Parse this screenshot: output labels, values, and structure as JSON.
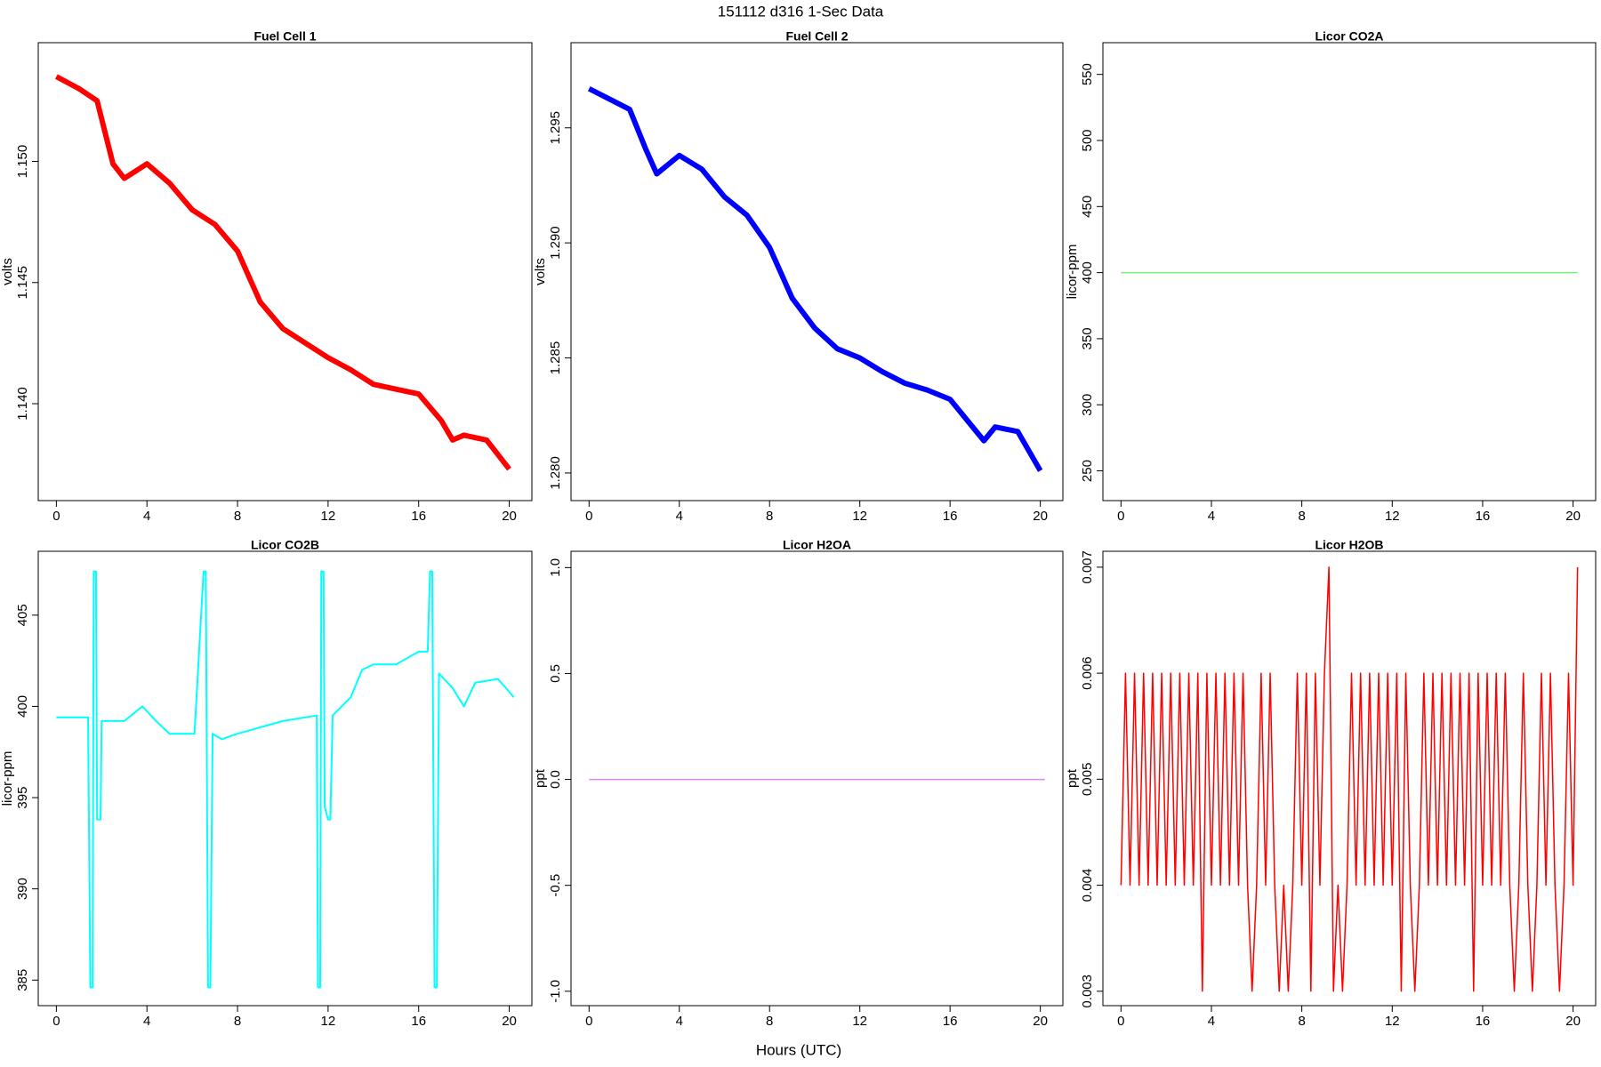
{
  "page_title": "151112   d316   1-Sec Data",
  "x_label": "Hours (UTC)",
  "chart_data": [
    {
      "type": "line",
      "title": "Fuel Cell 1",
      "y_label": "volts",
      "color": "#ff0000",
      "width": 6,
      "x": [
        0,
        1,
        1.8,
        2.5,
        3,
        4,
        5,
        6,
        7,
        8,
        9,
        10,
        11,
        12,
        13,
        14,
        15,
        16,
        17,
        17.5,
        18,
        19,
        20
      ],
      "values": [
        1.1535,
        1.153,
        1.1525,
        1.1499,
        1.1493,
        1.1499,
        1.1491,
        1.148,
        1.1474,
        1.1463,
        1.1442,
        1.1431,
        1.1425,
        1.1419,
        1.1414,
        1.1408,
        1.1406,
        1.1404,
        1.1393,
        1.1385,
        1.1387,
        1.1385,
        1.1373
      ],
      "xlim": [
        -0.8,
        21
      ],
      "xticks": [
        0,
        4,
        8,
        12,
        16,
        20
      ],
      "ylim": [
        1.136,
        1.1549
      ],
      "yticks": [
        {
          "value": 1.14,
          "label": "1.140"
        },
        1.145,
        {
          "value": 1.15,
          "label": "1.150"
        }
      ]
    },
    {
      "type": "line",
      "title": "Fuel Cell 2",
      "y_label": "volts",
      "color": "#0000ff",
      "width": 6,
      "x": [
        0,
        1,
        1.8,
        2.5,
        3,
        4,
        5,
        6,
        7,
        8,
        9,
        10,
        11,
        12,
        13,
        14,
        15,
        16,
        17,
        17.5,
        18,
        19,
        20
      ],
      "values": [
        1.2967,
        1.2962,
        1.2958,
        1.2941,
        1.293,
        1.2938,
        1.2932,
        1.292,
        1.2912,
        1.2898,
        1.2876,
        1.2863,
        1.2854,
        1.285,
        1.2844,
        1.2839,
        1.2836,
        1.2832,
        1.282,
        1.2814,
        1.282,
        1.2818,
        1.2801
      ],
      "xlim": [
        -0.8,
        21
      ],
      "xticks": [
        0,
        4,
        8,
        12,
        16,
        20
      ],
      "ylim": [
        1.2788,
        1.2987
      ],
      "yticks": [
        {
          "value": 1.28,
          "label": "1.280"
        },
        1.285,
        {
          "value": 1.29,
          "label": "1.290"
        },
        1.295
      ]
    },
    {
      "type": "line",
      "title": "Licor CO2A",
      "y_label": "licor-ppm",
      "color": "#77ee77",
      "width": 1.5,
      "x": [
        0,
        20.2
      ],
      "values": [
        400,
        400
      ],
      "xlim": [
        -0.8,
        21
      ],
      "xticks": [
        0,
        4,
        8,
        12,
        16,
        20
      ],
      "ylim": [
        227.5,
        574
      ],
      "yticks": [
        250,
        300,
        350,
        400,
        450,
        500,
        550
      ]
    },
    {
      "type": "line",
      "title": "Licor CO2B",
      "y_label": "licor-ppm",
      "color": "#00ffff",
      "width": 2,
      "x": [
        0,
        1.4,
        1.5,
        1.6,
        1.65,
        1.75,
        1.8,
        1.95,
        2,
        3,
        3.8,
        4.4,
        5,
        6.1,
        6.5,
        6.6,
        6.7,
        6.8,
        6.9,
        7.3,
        8,
        10,
        11,
        11.5,
        11.55,
        11.65,
        11.7,
        11.8,
        11.85,
        12,
        12.1,
        12.2,
        13,
        13.5,
        14,
        15,
        16,
        16.4,
        16.5,
        16.6,
        16.7,
        16.8,
        16.9,
        17.5,
        18,
        18.5,
        19.5,
        20,
        20.2
      ],
      "values": [
        399.4,
        399.4,
        384.6,
        384.6,
        407.4,
        407.4,
        393.8,
        393.8,
        399.2,
        399.2,
        400,
        399.2,
        398.5,
        398.5,
        407.4,
        407.4,
        384.6,
        384.6,
        398.5,
        398.2,
        398.5,
        399.2,
        399.4,
        399.5,
        384.6,
        384.6,
        407.4,
        407.4,
        394.5,
        393.8,
        393.8,
        399.5,
        400.5,
        402,
        402.3,
        402.3,
        403,
        403,
        407.4,
        407.4,
        384.6,
        384.6,
        401.8,
        401,
        400,
        401.3,
        401.5,
        400.8,
        400.5
      ],
      "xlim": [
        -0.8,
        21
      ],
      "xticks": [
        0,
        4,
        8,
        12,
        16,
        20
      ],
      "ylim": [
        383.6,
        408.5
      ],
      "yticks": [
        385,
        390,
        395,
        400,
        405
      ]
    },
    {
      "type": "line",
      "title": "Licor H2OA",
      "y_label": "ppt",
      "color": "#dd88ee",
      "width": 1.5,
      "x": [
        0,
        20.2
      ],
      "values": [
        0,
        0
      ],
      "xlim": [
        -0.8,
        21
      ],
      "xticks": [
        0,
        4,
        8,
        12,
        16,
        20
      ],
      "ylim": [
        -1.068,
        1.077
      ],
      "yticks": [
        {
          "value": -1,
          "label": "-1.0"
        },
        -0.5,
        {
          "value": 0,
          "label": "0.0"
        },
        0.5,
        {
          "value": 1,
          "label": "1.0"
        }
      ]
    },
    {
      "type": "line",
      "title": "Licor H2OB",
      "y_label": "ppt",
      "color": "#ff0000",
      "width": 1.5,
      "x": [
        0,
        0.2,
        0.4,
        0.6,
        0.8,
        1,
        1.2,
        1.4,
        1.6,
        1.8,
        2,
        2.2,
        2.4,
        2.6,
        2.8,
        3,
        3.2,
        3.4,
        3.6,
        3.8,
        4,
        4.2,
        4.4,
        4.6,
        4.8,
        5,
        5.2,
        5.4,
        5.6,
        5.8,
        6,
        6.2,
        6.4,
        6.6,
        6.8,
        7,
        7.2,
        7.4,
        7.6,
        7.8,
        8,
        8.2,
        8.4,
        8.6,
        8.8,
        9,
        9.2,
        9.4,
        9.6,
        9.8,
        10,
        10.2,
        10.4,
        10.6,
        10.8,
        11,
        11.2,
        11.4,
        11.6,
        11.8,
        12,
        12.2,
        12.4,
        12.6,
        12.8,
        13,
        13.2,
        13.4,
        13.6,
        13.8,
        14,
        14.2,
        14.4,
        14.6,
        14.8,
        15,
        15.2,
        15.4,
        15.6,
        15.8,
        16,
        16.2,
        16.4,
        16.6,
        16.8,
        17,
        17.2,
        17.4,
        17.6,
        17.8,
        18,
        18.2,
        18.4,
        18.6,
        18.8,
        19,
        19.2,
        19.4,
        19.6,
        19.8,
        20,
        20.2
      ],
      "values": [
        0.004,
        0.006,
        0.004,
        0.006,
        0.004,
        0.006,
        0.004,
        0.006,
        0.004,
        0.006,
        0.004,
        0.006,
        0.004,
        0.006,
        0.004,
        0.006,
        0.004,
        0.006,
        0.003,
        0.006,
        0.004,
        0.006,
        0.004,
        0.006,
        0.004,
        0.006,
        0.004,
        0.006,
        0.004,
        0.003,
        0.004,
        0.006,
        0.004,
        0.006,
        0.004,
        0.003,
        0.004,
        0.003,
        0.004,
        0.006,
        0.004,
        0.006,
        0.003,
        0.006,
        0.004,
        0.006,
        0.007,
        0.003,
        0.004,
        0.003,
        0.004,
        0.006,
        0.004,
        0.006,
        0.004,
        0.006,
        0.004,
        0.006,
        0.004,
        0.006,
        0.004,
        0.006,
        0.003,
        0.006,
        0.004,
        0.003,
        0.004,
        0.006,
        0.004,
        0.006,
        0.004,
        0.006,
        0.004,
        0.006,
        0.004,
        0.006,
        0.004,
        0.006,
        0.003,
        0.006,
        0.004,
        0.006,
        0.004,
        0.006,
        0.004,
        0.006,
        0.004,
        0.003,
        0.004,
        0.006,
        0.004,
        0.003,
        0.004,
        0.006,
        0.004,
        0.006,
        0.004,
        0.003,
        0.004,
        0.006,
        0.004,
        0.007
      ],
      "xlim": [
        -0.8,
        21
      ],
      "xticks": [
        0,
        4,
        8,
        12,
        16,
        20
      ],
      "ylim": [
        0.002864,
        0.00715
      ],
      "yticks": [
        0.003,
        0.004,
        0.005,
        0.006,
        0.007
      ]
    }
  ]
}
